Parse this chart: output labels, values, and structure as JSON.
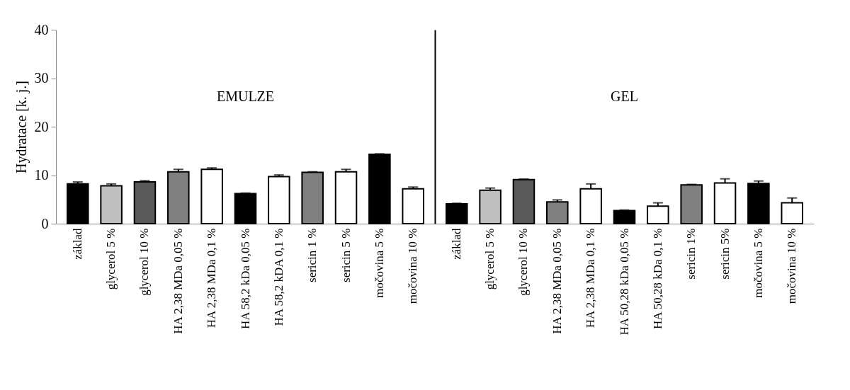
{
  "chart_data": [
    {
      "type": "bar",
      "ylabel": "Hydratace [k. j.]",
      "annotations": [
        "EMULZE"
      ],
      "ylim": [
        0,
        40
      ],
      "yticks": [
        0,
        10,
        20,
        30,
        40
      ],
      "grid": false,
      "categories": [
        "základ",
        "glycerol 5 %",
        "glycerol 10 %",
        "HA 2,38 MDa 0,05 %",
        "HA 2,38 MDa 0,1 %",
        "HA 58,2 kDa 0,05 %",
        "HA 58,2 kDA 0,1 %",
        "sericin 1 %",
        "sericin 5 %",
        "močovina 5 %",
        "močovina 10 %"
      ],
      "values": [
        8.2,
        7.8,
        8.6,
        10.7,
        11.2,
        6.2,
        9.7,
        10.6,
        10.7,
        14.3,
        7.2
      ],
      "errors": [
        0.4,
        0.4,
        0.25,
        0.5,
        0.3,
        0.1,
        0.35,
        0.1,
        0.5,
        0.1,
        0.35
      ],
      "colors": [
        "#000000",
        "#bfbfbf",
        "#595959",
        "#808080",
        "#ffffff",
        "#000000",
        "#ffffff",
        "#808080",
        "#ffffff",
        "#000000",
        "#ffffff"
      ]
    },
    {
      "type": "bar",
      "annotations": [
        "GEL"
      ],
      "ylim": [
        0,
        40
      ],
      "yticks": [
        0,
        10,
        20,
        30,
        40
      ],
      "grid": false,
      "tick_labels": "x",
      "categories": [
        "základ",
        "glycerol 5 %",
        "glycerol 10 %",
        "HA 2,38 MDa 0,05 %",
        "HA 2,38 MDa 0,1 %",
        "HA 50,28 kDa 0,05 %",
        "HA 50,28 kDa 0,1 %",
        "sericin 1%",
        "sericin 5%",
        "močovina 5 %",
        "močovina 10 %"
      ],
      "values": [
        4.1,
        6.9,
        9.1,
        4.5,
        7.2,
        2.7,
        3.6,
        8.0,
        8.4,
        8.3,
        4.3
      ],
      "errors": [
        0.1,
        0.45,
        0.1,
        0.4,
        1.0,
        0.1,
        0.7,
        0.1,
        0.85,
        0.5,
        1.0
      ],
      "colors": [
        "#000000",
        "#bfbfbf",
        "#595959",
        "#808080",
        "#ffffff",
        "#000000",
        "#ffffff",
        "#808080",
        "#ffffff",
        "#000000",
        "#ffffff"
      ]
    }
  ]
}
